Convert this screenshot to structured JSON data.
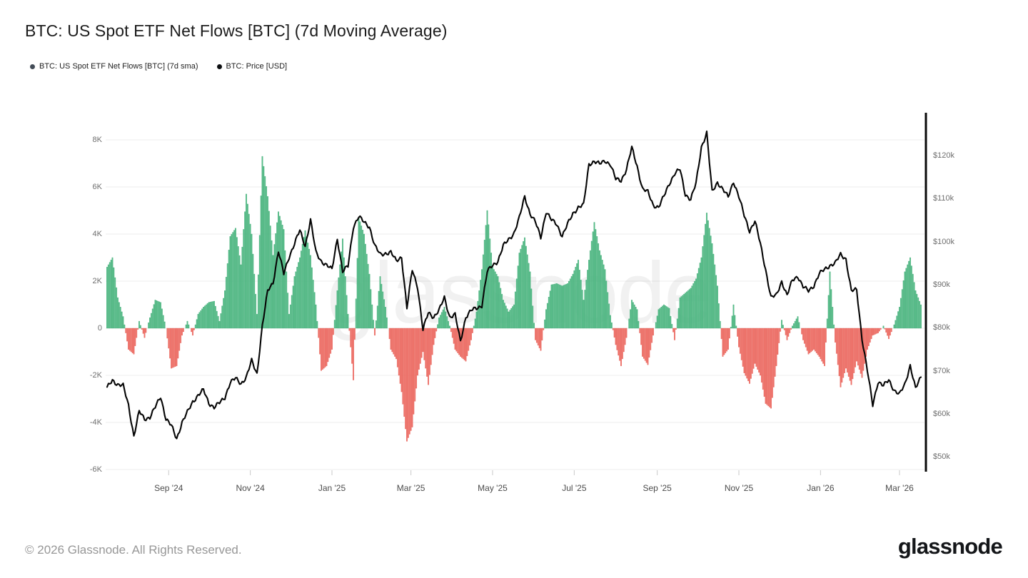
{
  "header": {
    "title": "BTC: US Spot ETF Net Flows [BTC] (7d Moving Average)"
  },
  "legend": {
    "items": [
      {
        "label": "BTC: US Spot ETF Net Flows [BTC] (7d sma)",
        "color": "#434c57"
      },
      {
        "label": "BTC: Price [USD]",
        "color": "#0c0e10"
      }
    ]
  },
  "watermark": "glassnode",
  "footer": {
    "copyright": "© 2026 Glassnode. All Rights Reserved.",
    "brand": "glassnode"
  },
  "chart_data": {
    "type": "combo",
    "title": "BTC: US Spot ETF Net Flows [BTC] (7d Moving Average)",
    "start_date": "2024-07-17",
    "interval_days": 4,
    "x_axis": {
      "ticks": [
        {
          "label": "Sep '24",
          "date": "2024-09-01"
        },
        {
          "label": "Nov '24",
          "date": "2024-11-01"
        },
        {
          "label": "Jan '25",
          "date": "2025-01-01"
        },
        {
          "label": "Mar '25",
          "date": "2025-03-01"
        },
        {
          "label": "May '25",
          "date": "2025-05-01"
        },
        {
          "label": "Jul '25",
          "date": "2025-07-01"
        },
        {
          "label": "Sep '25",
          "date": "2025-09-01"
        },
        {
          "label": "Nov '25",
          "date": "2025-11-01"
        },
        {
          "label": "Jan '26",
          "date": "2026-01-01"
        },
        {
          "label": "Mar '26",
          "date": "2026-03-01"
        }
      ]
    },
    "y_axis_left": {
      "unit": "BTC per day (thousands), 7d moving average",
      "ticks": [
        {
          "label": "8K",
          "value": 8
        },
        {
          "label": "6K",
          "value": 6
        },
        {
          "label": "4K",
          "value": 4
        },
        {
          "label": "2K",
          "value": 2
        },
        {
          "label": "0",
          "value": 0
        },
        {
          "label": "-2K",
          "value": -2
        },
        {
          "label": "-4K",
          "value": -4
        },
        {
          "label": "-6K",
          "value": -6
        }
      ]
    },
    "y_axis_right": {
      "unit": "USD (thousands)",
      "ticks": [
        {
          "label": "$120k",
          "value": 120
        },
        {
          "label": "$110k",
          "value": 110
        },
        {
          "label": "$100k",
          "value": 100
        },
        {
          "label": "$90k",
          "value": 90
        },
        {
          "label": "$80k",
          "value": 80
        },
        {
          "label": "$70k",
          "value": 70
        },
        {
          "label": "$60k",
          "value": 60
        },
        {
          "label": "$50k",
          "value": 50
        }
      ]
    },
    "series": [
      {
        "name": "BTC: US Spot ETF Net Flows [BTC] (7d sma)",
        "type": "bar",
        "color_positive": "#5abf8a",
        "color_negative": "#f3736b",
        "values_unit": "K BTC/day",
        "values": [
          2.6,
          3.0,
          1.3,
          0.5,
          -0.9,
          -1.1,
          0.3,
          -0.4,
          0.45,
          1.2,
          1.1,
          0.0,
          -1.7,
          -1.6,
          -0.3,
          0.3,
          -0.3,
          0.6,
          0.9,
          1.1,
          1.15,
          0.3,
          1.6,
          3.9,
          4.25,
          2.7,
          5.7,
          4.0,
          0.6,
          7.3,
          5.6,
          3.1,
          4.95,
          4.2,
          0.6,
          2.2,
          3.0,
          4.15,
          3.1,
          1.0,
          -1.8,
          -1.6,
          -0.9,
          1.6,
          3.8,
          0.6,
          -2.2,
          4.7,
          4.0,
          2.3,
          -0.3,
          2.2,
          0.9,
          -0.9,
          -1.3,
          -2.7,
          -4.8,
          -4.2,
          -2.0,
          -1.0,
          -2.4,
          -0.7,
          0.45,
          0.9,
          0.1,
          -0.9,
          -1.2,
          -1.4,
          -0.5,
          0.7,
          2.5,
          5.0,
          2.6,
          2.2,
          1.2,
          0.7,
          1.0,
          3.2,
          3.85,
          2.4,
          -0.5,
          -0.95,
          0.8,
          1.85,
          1.9,
          1.8,
          1.9,
          2.3,
          2.9,
          1.2,
          2.9,
          4.5,
          3.3,
          2.5,
          0.55,
          -0.7,
          -1.6,
          -0.4,
          1.2,
          0.8,
          -1.2,
          -1.55,
          -0.3,
          0.8,
          1.0,
          0.85,
          -0.5,
          1.3,
          1.5,
          1.7,
          2.1,
          3.0,
          4.9,
          3.6,
          1.8,
          -1.2,
          -0.9,
          1.0,
          -0.8,
          -1.9,
          -2.35,
          -1.5,
          -2.0,
          -3.2,
          -3.4,
          -1.6,
          0.35,
          -0.5,
          0.1,
          0.5,
          -0.5,
          -1.1,
          -0.9,
          -1.2,
          -1.6,
          2.4,
          -0.6,
          -2.5,
          -1.7,
          -2.4,
          -1.4,
          -2.1,
          -0.9,
          -0.3,
          -0.2,
          0.1,
          -0.45,
          0.15,
          0.9,
          2.4,
          3.0,
          1.6,
          1.0
        ]
      },
      {
        "name": "BTC: Price [USD]",
        "type": "line",
        "color": "#050505",
        "values_unit": "k$",
        "values": [
          66.0,
          67.8,
          66.8,
          66.5,
          62.0,
          54.8,
          60.5,
          58.8,
          59.2,
          61.5,
          64.0,
          58.8,
          57.2,
          54.2,
          58.0,
          60.3,
          62.8,
          64.3,
          65.5,
          62.5,
          61.5,
          62.5,
          63.8,
          67.3,
          68.2,
          67.0,
          68.5,
          72.3,
          69.3,
          80.5,
          88.5,
          90.5,
          97.8,
          92.5,
          96.5,
          99.5,
          102.6,
          99.0,
          105.0,
          97.5,
          95.5,
          94.5,
          93.5,
          100.8,
          93.0,
          94.3,
          103.5,
          105.8,
          104.5,
          103.5,
          99.0,
          97.0,
          97.3,
          97.5,
          95.5,
          96.5,
          84.5,
          93.5,
          89.5,
          79.5,
          83.5,
          82.5,
          84.0,
          87.0,
          82.5,
          83.0,
          76.8,
          82.5,
          84.0,
          84.5,
          85.2,
          93.0,
          94.5,
          95.5,
          99.0,
          100.5,
          102.0,
          105.5,
          110.5,
          106.5,
          104.5,
          101.0,
          107.0,
          105.0,
          104.0,
          101.3,
          104.0,
          106.5,
          108.0,
          108.5,
          118.0,
          118.7,
          118.0,
          118.8,
          118.0,
          114.5,
          114.2,
          116.8,
          121.8,
          117.5,
          112.3,
          111.5,
          108.5,
          108.0,
          110.5,
          113.5,
          115.8,
          116.8,
          111.0,
          109.8,
          113.5,
          122.0,
          125.3,
          111.5,
          113.8,
          112.2,
          110.3,
          114.0,
          110.5,
          106.0,
          102.5,
          104.8,
          99.5,
          93.5,
          87.0,
          87.5,
          90.8,
          87.5,
          91.0,
          92.0,
          89.5,
          88.5,
          89.8,
          92.5,
          93.5,
          94.5,
          95.0,
          97.0,
          96.0,
          88.5,
          88.8,
          77.5,
          70.0,
          62.0,
          67.5,
          66.5,
          67.8,
          65.5,
          64.5,
          66.8,
          71.3,
          65.8,
          68.5
        ]
      }
    ]
  }
}
